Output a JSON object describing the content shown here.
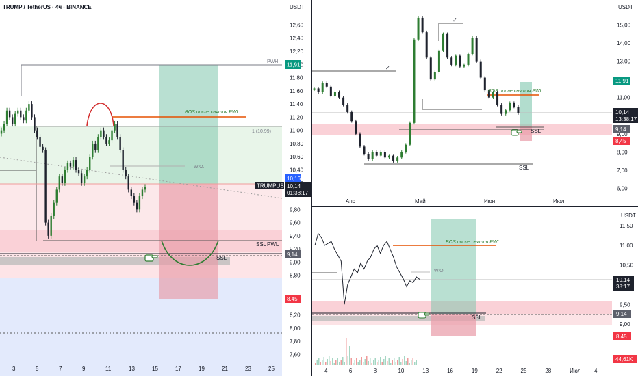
{
  "chart_data": [
    {
      "type": "candlestick",
      "title": "TRUMP / TetherUS · 4ч · BINANCE",
      "currency": "USDT",
      "x_ticks": [
        "3",
        "5",
        "7",
        "9",
        "11",
        "13",
        "15",
        "17",
        "19",
        "21",
        "23",
        "25"
      ],
      "y_ticks": [
        "12,60",
        "12,40",
        "12,20",
        "12,00",
        "11,80",
        "11,60",
        "11,40",
        "11,20",
        "11,00",
        "10,80",
        "10,60",
        "10,40",
        "10,20",
        "9,80",
        "9,60",
        "9,40",
        "9,20",
        "9,00",
        "8,80",
        "8,20",
        "8,00",
        "7,80",
        "7,60"
      ],
      "ylim": [
        7.5,
        12.75
      ],
      "levels": {
        "PWH": 11.91,
        "BOS": 11.18,
        "box_top": 11.0,
        "W.O.": 10.44,
        "PWL": 9.3,
        "SSL": 9.14,
        "target": 8.45
      },
      "labels": {
        "pwh": "PWH",
        "bos": "BOS после снятия PWL",
        "fib": "1 (10,99)",
        "wo": "W.O.",
        "ssl": "SSL",
        "pwl": "PWL",
        "ssl2": "SSL"
      },
      "price_tags": {
        "pwh": "11,91",
        "ask": "10,16",
        "symbol": "TRUMPUSDT",
        "last": "10,14",
        "timer": "01:38:17",
        "ssl": "9,14",
        "target": "8,45"
      },
      "series_close": [
        11.0,
        11.1,
        11.3,
        11.2,
        11.1,
        11.25,
        11.3,
        11.2,
        11.15,
        11.3,
        11.4,
        11.2,
        11.0,
        10.9,
        10.75,
        10.7,
        9.6,
        9.4,
        9.7,
        9.9,
        10.1,
        10.3,
        10.2,
        10.4,
        10.5,
        10.45,
        10.55,
        10.4,
        10.35,
        10.2,
        10.3,
        10.4,
        10.6,
        10.8,
        10.7,
        10.9,
        11.0,
        10.9,
        10.8,
        10.85,
        11.0,
        11.1,
        10.9,
        10.7,
        10.4,
        10.3,
        10.1,
        10.0,
        9.9,
        9.8,
        10.0,
        10.1,
        10.14
      ]
    },
    {
      "type": "candlestick",
      "currency": "USDT",
      "x_ticks": [
        "Апр",
        "Май",
        "Июн",
        "Июл"
      ],
      "y_ticks": [
        "15,00",
        "14,00",
        "13,00",
        "12,00",
        "11,00",
        "10,00",
        "9,00",
        "8,00",
        "7,00",
        "6,00"
      ],
      "ylim": [
        5.3,
        16.0
      ],
      "labels": {
        "bos": "BOS после снятия PWL",
        "ssl": "SSL",
        "ssl2": "SSL",
        "check": "✓"
      },
      "price_tags": {
        "pwh": "11,91",
        "last": "10,14",
        "timer": "13:38:17",
        "ssl": "9,14",
        "target": "8,45"
      },
      "series_close": [
        11.5,
        11.3,
        11.8,
        11.6,
        11.1,
        11.3,
        11.0,
        10.6,
        10.2,
        9.7,
        9.0,
        8.3,
        7.9,
        7.6,
        8.0,
        7.8,
        8.0,
        7.7,
        7.8,
        7.5,
        7.7,
        8.0,
        8.4,
        9.6,
        14.2,
        15.4,
        14.6,
        13.2,
        12.0,
        12.4,
        13.6,
        14.5,
        13.2,
        12.8,
        13.3,
        12.7,
        12.8,
        13.4,
        14.3,
        13.0,
        12.1,
        11.4,
        11.0,
        11.3,
        10.6,
        10.1,
        10.3,
        10.7,
        10.5,
        10.14
      ]
    },
    {
      "type": "line",
      "currency": "USDT",
      "x_ticks": [
        "4",
        "6",
        "8",
        "10",
        "13",
        "16",
        "19",
        "22",
        "25",
        "28",
        "Июл",
        "4"
      ],
      "y_ticks": [
        "11,50",
        "11,00",
        "10,50",
        "10,00",
        "9,50",
        "9,00"
      ],
      "ylim": [
        8.55,
        11.85
      ],
      "labels": {
        "bos": "BOS после снятия PWL",
        "wo": "W.O.",
        "ssl": "SSL"
      },
      "price_tags": {
        "last": "10,14",
        "timer": "38:17",
        "ssl": "9,14",
        "target": "8,45",
        "volume": "44,61K"
      },
      "series": [
        11.0,
        11.3,
        11.2,
        11.0,
        11.05,
        11.1,
        10.9,
        10.75,
        10.6,
        9.5,
        10.0,
        10.2,
        10.4,
        10.3,
        10.55,
        10.4,
        10.6,
        10.7,
        10.9,
        11.0,
        10.8,
        11.0,
        11.1,
        10.9,
        10.7,
        10.45,
        10.3,
        10.15,
        9.95,
        10.1,
        10.05,
        10.2,
        10.14
      ]
    }
  ]
}
